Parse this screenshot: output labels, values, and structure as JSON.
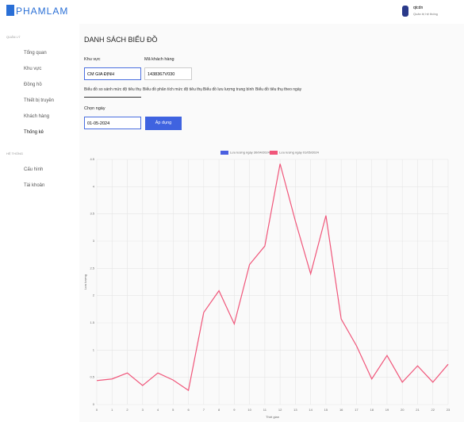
{
  "header": {
    "logo": "PHAMLAM",
    "user": "qtcdn",
    "role": "Quản trị hệ thống"
  },
  "sidebar": {
    "sections": [
      {
        "title": "QUẢN LÝ",
        "items": [
          "Tổng quan",
          "Khu vực",
          "Đồng hồ",
          "Thiết bị truyền",
          "Khách hàng",
          "Thống kê"
        ]
      },
      {
        "title": "HỆ THỐNG",
        "items": [
          "Cấu hình",
          "Tài khoản"
        ]
      }
    ],
    "active": "Thống kê"
  },
  "page": {
    "title": "DANH SÁCH BIỂU ĐỒ",
    "area_label": "Khu vực",
    "area_value": "CM GIA ĐỊNH",
    "customer_label": "Mã khách hàng",
    "customer_value": "1438367V030",
    "tabs": [
      "Biểu đồ so sánh mức độ tiêu thụ",
      "Biểu đồ phân tích mức độ tiêu thụ",
      "Biểu đồ lưu lượng trung bình",
      "Biểu đồ tiêu thụ theo ngày"
    ],
    "date_label": "Chọn ngày",
    "date_value": "01-05-2024",
    "button": "Áp dụng"
  },
  "chart_data": {
    "type": "line",
    "x_label": "Thời gian",
    "y_label": "Lưu lượng",
    "categories": [
      "0",
      "1",
      "2",
      "3",
      "4",
      "5",
      "6",
      "7",
      "8",
      "9",
      "10",
      "11",
      "12",
      "13",
      "14",
      "15",
      "16",
      "17",
      "18",
      "19",
      "20",
      "21",
      "22",
      "23"
    ],
    "series": [
      {
        "name": "Lưu lượng ngày 30/04/2024",
        "color": "#4a5fe0",
        "values": [
          null,
          null,
          null,
          null,
          null,
          null,
          null,
          null,
          null,
          null,
          null,
          null,
          null,
          null,
          null,
          null,
          null,
          null,
          null,
          null,
          null,
          null,
          null,
          null
        ]
      },
      {
        "name": "Lưu lượng ngày 01/05/2024",
        "color": "#f0567a",
        "values": [
          0.44,
          0.47,
          0.58,
          0.35,
          0.58,
          0.45,
          0.26,
          1.69,
          2.09,
          1.48,
          2.57,
          2.91,
          4.42,
          3.37,
          2.4,
          3.47,
          1.57,
          1.08,
          0.47,
          0.9,
          0.41,
          0.71,
          0.41,
          0.74
        ]
      }
    ],
    "ylim": [
      0,
      4.5
    ],
    "yticks": [
      0,
      0.5,
      1,
      1.5,
      2,
      2.5,
      3,
      3.5,
      4,
      4.5
    ],
    "grid": true,
    "legend": "top"
  }
}
